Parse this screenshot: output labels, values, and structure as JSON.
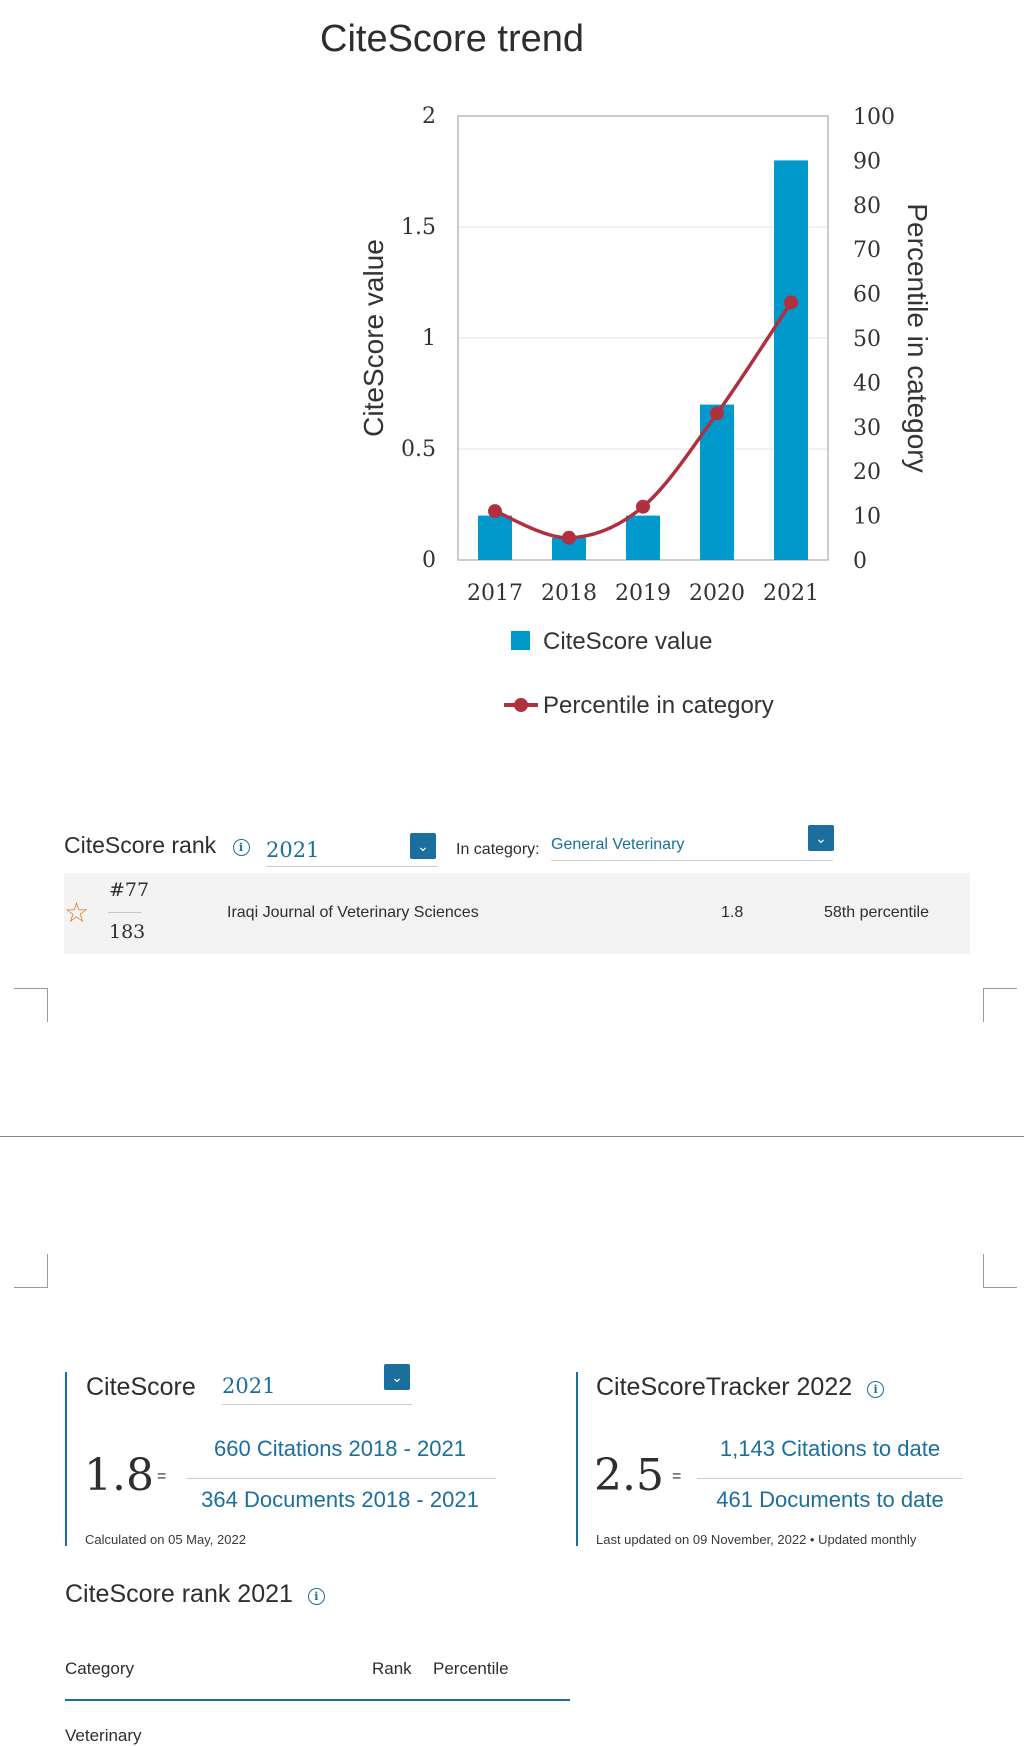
{
  "chart_data": {
    "type": "bar",
    "title": "CiteScore trend",
    "categories": [
      "2017",
      "2018",
      "2019",
      "2020",
      "2021"
    ],
    "series": [
      {
        "name": "CiteScore value",
        "type": "bar",
        "axis": "left",
        "values": [
          0.2,
          0.1,
          0.2,
          0.7,
          1.8
        ],
        "color": "#0099cc"
      },
      {
        "name": "Percentile in category",
        "type": "line",
        "axis": "right",
        "values": [
          11,
          5,
          12,
          33,
          58
        ],
        "color": "#b03040"
      }
    ],
    "ylabel": "CiteScore value",
    "y2label": "Percentile in category",
    "ylim": [
      0,
      2
    ],
    "y2lim": [
      0,
      100
    ],
    "yticks": [
      "0",
      "0.5",
      "1",
      "1.5",
      "2"
    ],
    "y2ticks": [
      "0",
      "10",
      "20",
      "30",
      "40",
      "50",
      "60",
      "70",
      "80",
      "90",
      "100"
    ],
    "grid": true,
    "legend": "bottom"
  },
  "rank_widget": {
    "label": "CiteScore rank",
    "year": "2021",
    "in_category_label": "In category:",
    "category": "General Veterinary",
    "row": {
      "rank": "#77",
      "total": "183",
      "journal": "Iraqi Journal of Veterinary Sciences",
      "score": "1.8",
      "percentile": "58th percentile"
    }
  },
  "citescore": {
    "label": "CiteScore",
    "year": "2021",
    "value": "1.8",
    "equals": "=",
    "numerator": "660 Citations 2018 - 2021",
    "denominator": "364 Documents 2018 - 2021",
    "note": "Calculated on 05 May, 2022"
  },
  "tracker": {
    "label": "CiteScoreTracker 2022",
    "value": "2.5",
    "equals": "=",
    "numerator": "1,143 Citations to date",
    "denominator": "461 Documents to date",
    "note": "Last updated on 09 November, 2022 • Updated monthly"
  },
  "rank_table": {
    "title": "CiteScore rank 2021",
    "headers": {
      "category": "Category",
      "rank": "Rank",
      "percentile": "Percentile"
    },
    "first_row_category": "Veterinary"
  },
  "colors": {
    "accent": "#1b6e9e",
    "bar": "#0099cc",
    "line": "#b03040"
  }
}
